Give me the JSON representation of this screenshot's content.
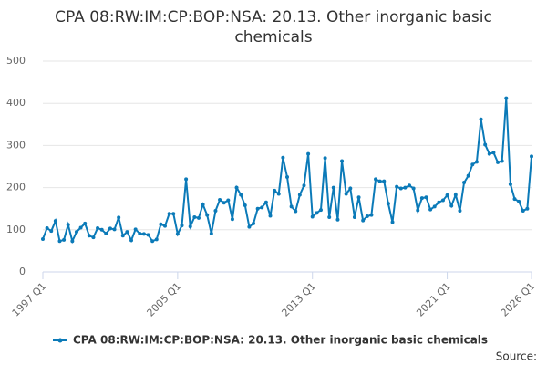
{
  "chart_data": {
    "type": "line",
    "title": "CPA 08:RW:IM:CP:BOP:NSA: 20.13. Other inorganic basic chemicals",
    "source": "Source:",
    "categories": [
      "1997 Q1",
      null,
      null,
      null,
      null,
      null,
      null,
      null,
      null,
      null,
      null,
      null,
      null,
      null,
      null,
      null,
      null,
      null,
      null,
      null,
      null,
      null,
      null,
      null,
      null,
      null,
      null,
      null,
      null,
      null,
      null,
      null,
      "2005 Q1",
      null,
      null,
      null,
      null,
      null,
      null,
      null,
      null,
      null,
      null,
      null,
      null,
      null,
      null,
      null,
      null,
      null,
      null,
      null,
      null,
      null,
      null,
      null,
      null,
      null,
      null,
      null,
      null,
      null,
      null,
      null,
      "2013 Q1",
      null,
      null,
      null,
      null,
      null,
      null,
      null,
      null,
      null,
      null,
      null,
      null,
      null,
      null,
      null,
      null,
      null,
      null,
      null,
      null,
      null,
      null,
      null,
      null,
      null,
      null,
      null,
      null,
      null,
      null,
      null,
      "2021 Q1",
      null,
      null,
      null,
      null,
      null,
      null,
      null,
      null,
      null,
      null,
      null,
      null,
      null,
      null,
      null,
      null,
      null,
      null,
      null,
      "2026 Q1"
    ],
    "series": [
      {
        "name": "CPA 08:RW:IM:CP:BOP:NSA: 20.13. Other inorganic basic chemicals",
        "color": "#0b7ab8",
        "values": [
          78,
          104,
          97,
          121,
          73,
          76,
          112,
          73,
          95,
          105,
          115,
          86,
          82,
          104,
          100,
          91,
          103,
          101,
          129,
          86,
          95,
          75,
          101,
          91,
          90,
          88,
          73,
          77,
          113,
          109,
          138,
          138,
          90,
          110,
          220,
          108,
          130,
          128,
          160,
          135,
          91,
          145,
          171,
          164,
          170,
          125,
          200,
          183,
          158,
          107,
          115,
          150,
          153,
          165,
          133,
          193,
          185,
          271,
          225,
          155,
          144,
          183,
          205,
          280,
          131,
          140,
          147,
          270,
          130,
          200,
          124,
          263,
          185,
          198,
          130,
          177,
          122,
          132,
          135,
          220,
          215,
          215,
          162,
          118,
          202,
          198,
          200,
          205,
          198,
          146,
          175,
          177,
          148,
          155,
          165,
          170,
          182,
          157,
          183,
          145,
          212,
          228,
          255,
          261,
          362,
          302,
          280,
          283,
          260,
          263,
          412,
          208,
          173,
          167,
          145,
          150,
          274
        ]
      }
    ],
    "ylim": [
      0,
      500
    ],
    "yticks": [
      0,
      100,
      200,
      300,
      400,
      500
    ],
    "grid": true
  }
}
